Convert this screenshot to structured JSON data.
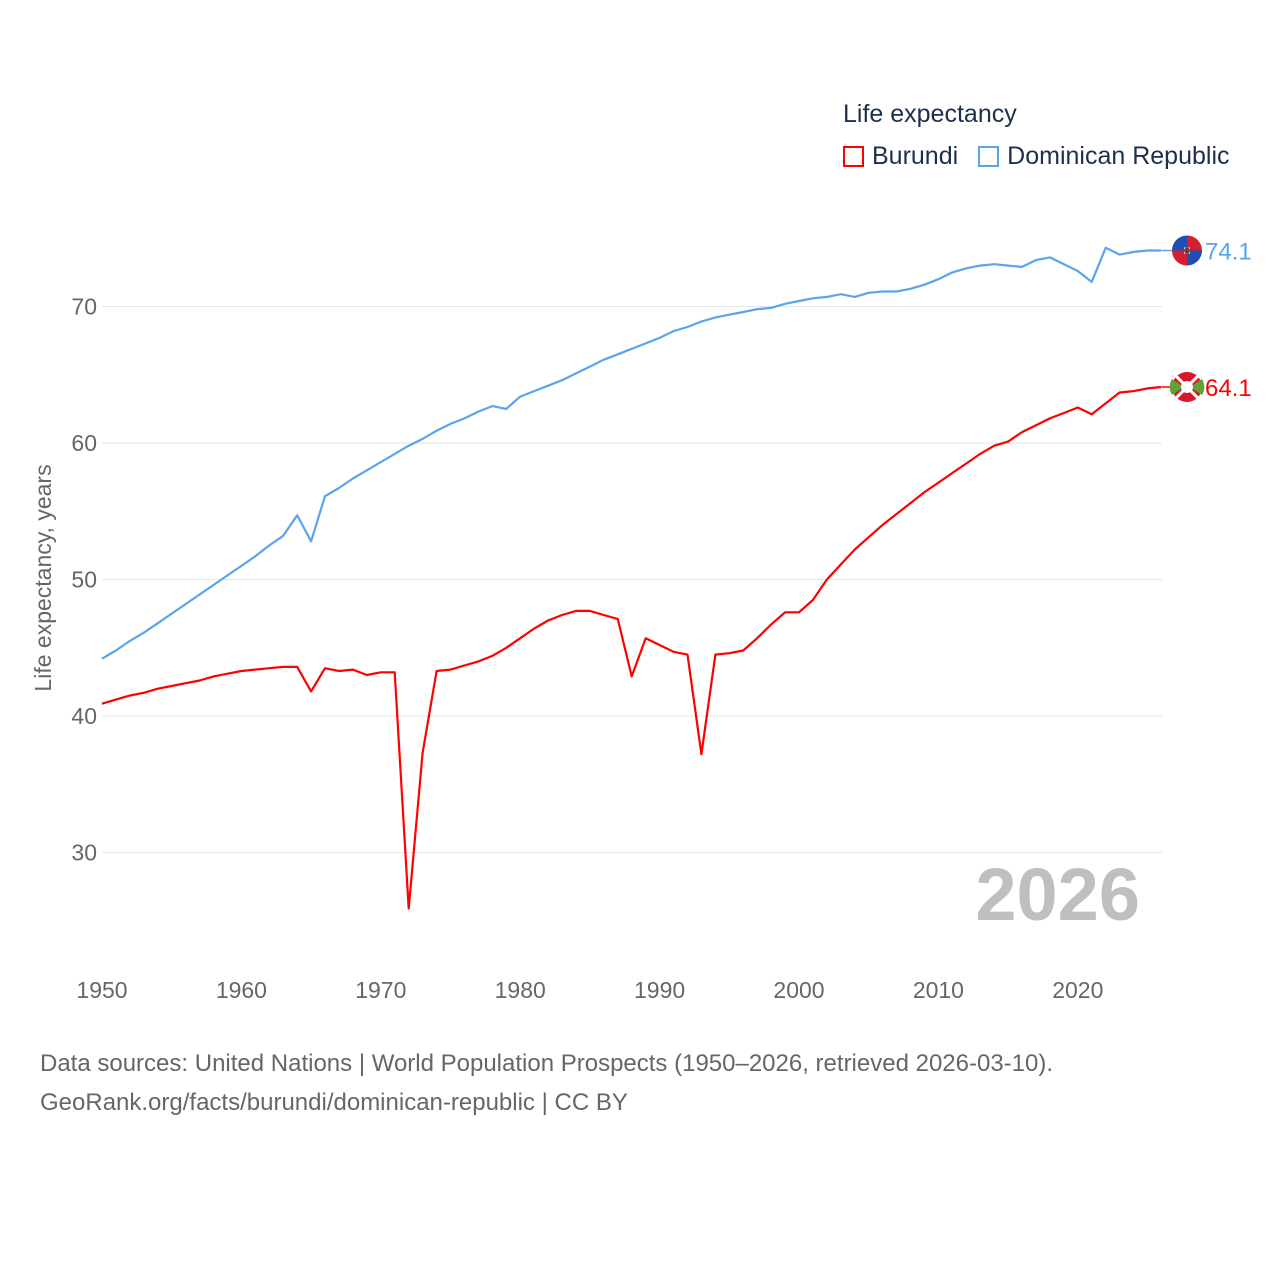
{
  "chart_data": {
    "type": "line",
    "legend_title": "Life expectancy",
    "ylabel": "Life expectancy, years",
    "xlabel": "",
    "year_watermark": "2026",
    "xlim": [
      1950,
      2026
    ],
    "ylim": [
      25,
      76
    ],
    "x_ticks": [
      "1950",
      "1960",
      "1970",
      "1980",
      "1990",
      "2000",
      "2010",
      "2020"
    ],
    "y_ticks": [
      "30",
      "40",
      "50",
      "60",
      "70"
    ],
    "grid": true,
    "legend_position": "top-right",
    "x": [
      1950,
      1951,
      1952,
      1953,
      1954,
      1955,
      1956,
      1957,
      1958,
      1959,
      1960,
      1961,
      1962,
      1963,
      1964,
      1965,
      1966,
      1967,
      1968,
      1969,
      1970,
      1971,
      1972,
      1973,
      1974,
      1975,
      1976,
      1977,
      1978,
      1979,
      1980,
      1981,
      1982,
      1983,
      1984,
      1985,
      1986,
      1987,
      1988,
      1989,
      1990,
      1991,
      1992,
      1993,
      1994,
      1995,
      1996,
      1997,
      1998,
      1999,
      2000,
      2001,
      2002,
      2003,
      2004,
      2005,
      2006,
      2007,
      2008,
      2009,
      2010,
      2011,
      2012,
      2013,
      2014,
      2015,
      2016,
      2017,
      2018,
      2019,
      2020,
      2021,
      2022,
      2023,
      2024,
      2025,
      2026
    ],
    "series": [
      {
        "name": "Burundi",
        "color": "#ff0000",
        "end_label": "64.1",
        "values": [
          40.9,
          41.2,
          41.5,
          41.7,
          42.0,
          42.2,
          42.4,
          42.6,
          42.9,
          43.1,
          43.3,
          43.4,
          43.5,
          43.6,
          43.6,
          41.8,
          43.5,
          43.3,
          43.4,
          43.0,
          43.2,
          43.2,
          25.9,
          37.3,
          43.3,
          43.4,
          43.7,
          44.0,
          44.4,
          45.0,
          45.7,
          46.4,
          47.0,
          47.4,
          47.7,
          47.7,
          47.4,
          47.1,
          42.9,
          45.7,
          45.2,
          44.7,
          44.5,
          37.2,
          44.5,
          44.6,
          44.8,
          45.7,
          46.7,
          47.6,
          47.6,
          48.5,
          50.0,
          51.1,
          52.2,
          53.1,
          54.0,
          54.8,
          55.6,
          56.4,
          57.1,
          57.8,
          58.5,
          59.2,
          59.8,
          60.1,
          60.8,
          61.3,
          61.8,
          62.2,
          62.6,
          62.1,
          62.9,
          63.7,
          63.8,
          64.0,
          64.1
        ]
      },
      {
        "name": "Dominican Republic",
        "color": "#5ba3ea",
        "end_label": "74.1",
        "values": [
          44.2,
          44.8,
          45.5,
          46.1,
          46.8,
          47.5,
          48.2,
          48.9,
          49.6,
          50.3,
          51.0,
          51.7,
          52.5,
          53.2,
          54.7,
          52.8,
          56.1,
          56.7,
          57.4,
          58.0,
          58.6,
          59.2,
          59.8,
          60.3,
          60.9,
          61.4,
          61.8,
          62.3,
          62.7,
          62.5,
          63.4,
          63.8,
          64.2,
          64.6,
          65.1,
          65.6,
          66.1,
          66.5,
          66.9,
          67.3,
          67.7,
          68.2,
          68.5,
          68.9,
          69.2,
          69.4,
          69.6,
          69.8,
          69.9,
          70.2,
          70.4,
          70.6,
          70.7,
          70.9,
          70.7,
          71.0,
          71.1,
          71.1,
          71.3,
          71.6,
          72.0,
          72.5,
          72.8,
          73.0,
          73.1,
          73.0,
          72.9,
          73.4,
          73.6,
          73.1,
          72.6,
          71.8,
          74.3,
          73.8,
          74.0,
          74.1,
          74.1
        ]
      }
    ]
  },
  "footer": {
    "line1": "Data sources: United Nations | World Population Prospects (1950–2026, retrieved 2026-03-10).",
    "line2": "GeoRank.org/facts/burundi/dominican-republic | CC BY"
  }
}
